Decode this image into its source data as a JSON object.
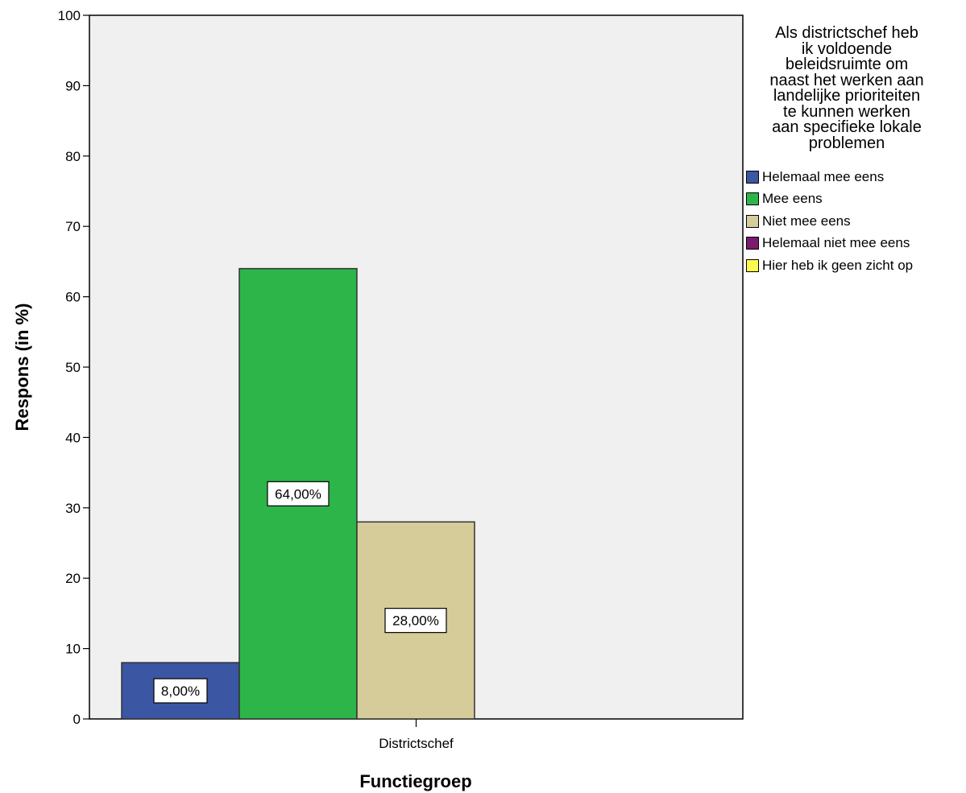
{
  "chart_data": {
    "type": "bar",
    "categories": [
      "Districtschef"
    ],
    "series": [
      {
        "name": "Helemaal mee eens",
        "values": [
          8
        ],
        "label": "8,00%",
        "color": "#3b56a3"
      },
      {
        "name": "Mee eens",
        "values": [
          64
        ],
        "label": "64,00%",
        "color": "#2db549"
      },
      {
        "name": "Niet mee eens",
        "values": [
          28
        ],
        "label": "28,00%",
        "color": "#d5cc99"
      },
      {
        "name": "Helemaal niet mee eens",
        "values": [
          0
        ],
        "label": "",
        "color": "#7b1a6e"
      },
      {
        "name": "Hier heb ik geen zicht op",
        "values": [
          0
        ],
        "label": "",
        "color": "#fdf84e"
      }
    ],
    "xlabel": "Functiegroep",
    "ylabel": "Respons (in %)",
    "ylim": [
      0,
      100
    ],
    "yticks": [
      0,
      10,
      20,
      30,
      40,
      50,
      60,
      70,
      80,
      90,
      100
    ],
    "legend_title": "Als districtschef heb\nik voldoende\nbeleidsruimte om\nnaast het werken aan\nlandelijke prioriteiten\nte kunnen  werken\naan specifieke lokale\nproblemen",
    "legend_position": "right",
    "grid": false,
    "plot_background": "#f0f0f0"
  }
}
